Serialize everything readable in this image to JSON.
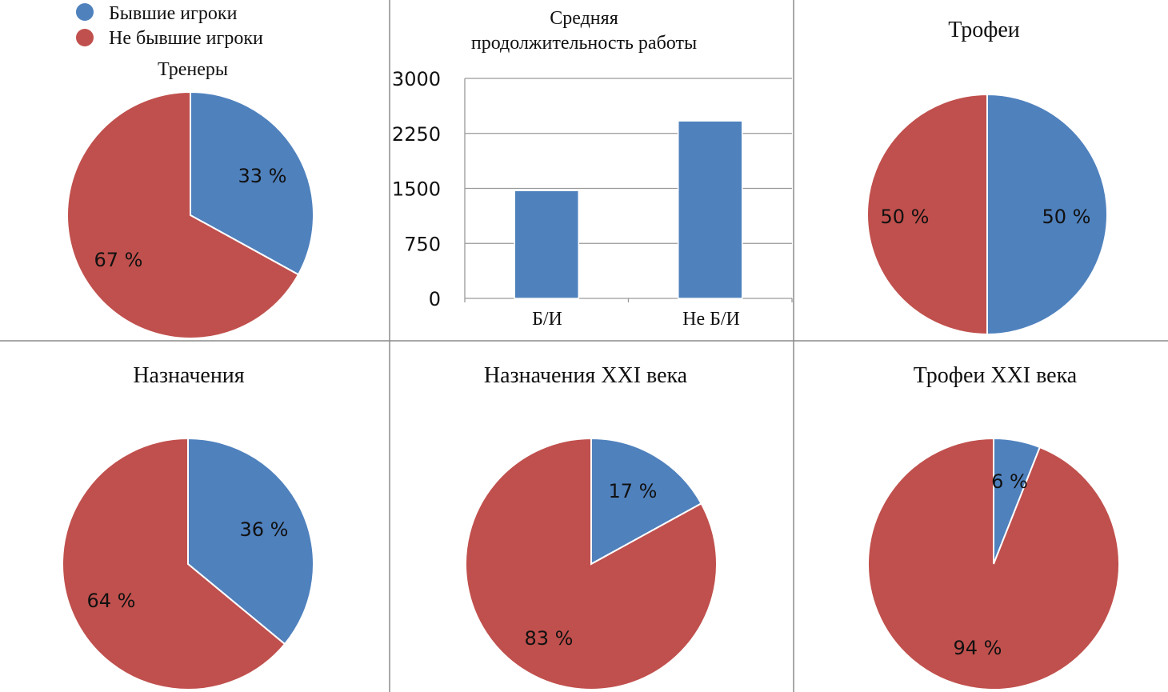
{
  "colors": {
    "former": "#4f81bd",
    "non_former": "#c0504d"
  },
  "legend": [
    {
      "label": "Бывшие игроки",
      "color": "#4f81bd"
    },
    {
      "label": "Не бывшие игроки",
      "color": "#c0504d"
    }
  ],
  "chart_data": [
    {
      "type": "pie",
      "title": "Тренеры",
      "slices": [
        {
          "name": "Бывшие игроки",
          "value": 33,
          "label": "33 %"
        },
        {
          "name": "Не бывшие игроки",
          "value": 67,
          "label": "67 %"
        }
      ]
    },
    {
      "type": "bar",
      "title_lines": [
        "Средняя",
        "продолжительность работы"
      ],
      "categories": [
        "Б/И",
        "Не Б/И"
      ],
      "values": [
        1470,
        2420
      ],
      "ylim": [
        0,
        3000
      ],
      "yticks": [
        0,
        750,
        1500,
        2250,
        3000
      ],
      "grid": true
    },
    {
      "type": "pie",
      "title": "Трофеи",
      "slices": [
        {
          "name": "Бывшие игроки",
          "value": 50,
          "label": "50 %"
        },
        {
          "name": "Не бывшие игроки",
          "value": 50,
          "label": "50 %"
        }
      ]
    },
    {
      "type": "pie",
      "title": "Назначения",
      "slices": [
        {
          "name": "Бывшие игроки",
          "value": 36,
          "label": "36 %"
        },
        {
          "name": "Не бывшие игроки",
          "value": 64,
          "label": "64 %"
        }
      ]
    },
    {
      "type": "pie",
      "title": "Назначения XXI века",
      "slices": [
        {
          "name": "Бывшие игроки",
          "value": 17,
          "label": "17 %"
        },
        {
          "name": "Не бывшие игроки",
          "value": 83,
          "label": "83 %"
        }
      ]
    },
    {
      "type": "pie",
      "title": "Трофеи XXI века",
      "slices": [
        {
          "name": "Бывшие игроки",
          "value": 6,
          "label": "6 %"
        },
        {
          "name": "Не бывшие игроки",
          "value": 94,
          "label": "94 %"
        }
      ]
    }
  ]
}
